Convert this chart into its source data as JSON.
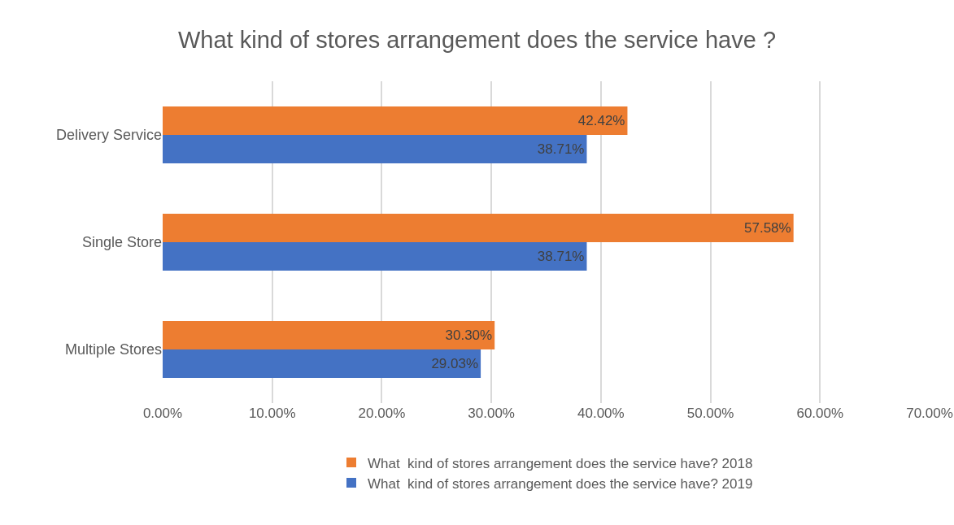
{
  "chart_data": {
    "type": "bar",
    "orientation": "horizontal",
    "title": "What kind of stores arrangement does the service have ?",
    "categories": [
      "Delivery Service",
      "Single Store",
      "Multiple Stores"
    ],
    "series": [
      {
        "name": "What  kind of stores arrangement does the service have? 2018",
        "color": "#ed7d31",
        "values": [
          42.42,
          57.58,
          30.3
        ],
        "value_labels": [
          "42.42%",
          "57.58%",
          "30.30%"
        ]
      },
      {
        "name": "What  kind of stores arrangement does the service have? 2019",
        "color": "#4472c4",
        "values": [
          38.71,
          38.71,
          29.03
        ],
        "value_labels": [
          "38.71%",
          "38.71%",
          "29.03%"
        ]
      }
    ],
    "xlim": [
      0,
      70
    ],
    "xticks": [
      {
        "value": 0,
        "label": "0.00%"
      },
      {
        "value": 10,
        "label": "10.00%"
      },
      {
        "value": 20,
        "label": "20.00%"
      },
      {
        "value": 30,
        "label": "30.00%"
      },
      {
        "value": 40,
        "label": "40.00%"
      },
      {
        "value": 50,
        "label": "50.00%"
      },
      {
        "value": 60,
        "label": "60.00%"
      },
      {
        "value": 70,
        "label": "70.00%"
      }
    ],
    "grid": "x",
    "legend": "bottom"
  }
}
